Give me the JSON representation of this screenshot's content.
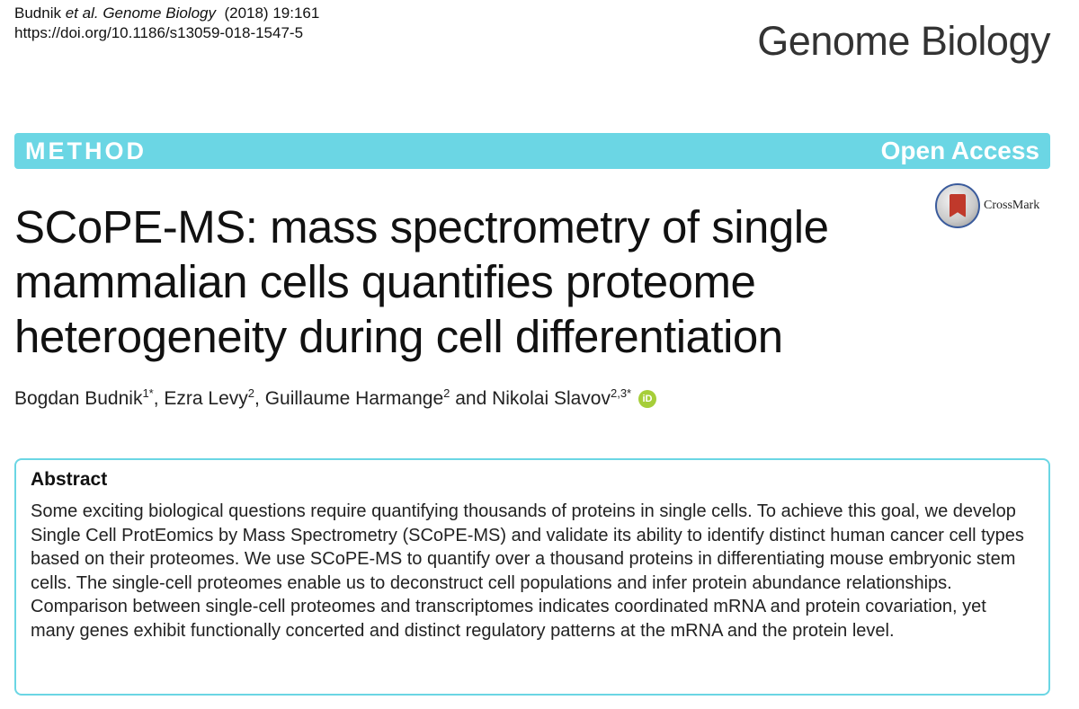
{
  "citation": {
    "authors": "Budnik",
    "et_al": "et al.",
    "journal": "Genome Biology",
    "year_vol": "(2018) 19:161",
    "doi": "https://doi.org/10.1186/s13059-018-1547-5"
  },
  "journal_name": "Genome Biology",
  "banner": {
    "type": "METHOD",
    "access": "Open Access",
    "color": "#6bd6e4"
  },
  "crossmark": {
    "label": "CrossMark",
    "icon": "crossmark-icon"
  },
  "title_lines": [
    "SCoPE-MS: mass spectrometry of single",
    "mammalian cells quantifies proteome",
    "heterogeneity during cell differentiation"
  ],
  "authors": [
    {
      "name": "Bogdan Budnik",
      "sup": "1*",
      "sep": ", "
    },
    {
      "name": "Ezra Levy",
      "sup": "2",
      "sep": ", "
    },
    {
      "name": "Guillaume Harmange",
      "sup": "2",
      "sep": " and "
    },
    {
      "name": "Nikolai Slavov",
      "sup": "2,3*",
      "sep": ""
    }
  ],
  "orcid": {
    "icon": "orcid-icon",
    "text": "iD"
  },
  "abstract": {
    "heading": "Abstract",
    "text": "Some exciting biological questions require quantifying thousands of proteins in single cells. To achieve this goal, we develop Single Cell ProtEomics by Mass Spectrometry (SCoPE-MS) and validate its ability to identify distinct human cancer cell types based on their proteomes. We use SCoPE-MS to quantify over a thousand proteins in differentiating mouse embryonic stem cells. The single-cell proteomes enable us to deconstruct cell populations and infer protein abundance relationships. Comparison between single-cell proteomes and transcriptomes indicates coordinated mRNA and protein covariation, yet many genes exhibit functionally concerted and distinct regulatory patterns at the mRNA and the protein level."
  }
}
